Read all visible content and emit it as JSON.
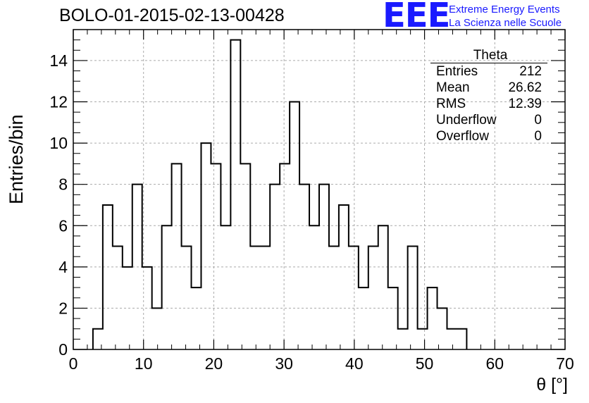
{
  "chart_data": {
    "type": "histogram",
    "title": "BOLO-01-2015-02-13-00428",
    "xlabel": "θ [°]",
    "ylabel": "Entries/bin",
    "xlim": [
      0,
      70
    ],
    "ylim": [
      0,
      15.5
    ],
    "xticks": [
      "0",
      "10",
      "20",
      "30",
      "40",
      "50",
      "60",
      "70"
    ],
    "yticks": [
      "0",
      "2",
      "4",
      "6",
      "8",
      "10",
      "12",
      "14"
    ],
    "grid": true,
    "bin_width": 1.4,
    "bin_edges_start": 2.8,
    "values": [
      1,
      7,
      5,
      4,
      8,
      4,
      2,
      6,
      9,
      5,
      3,
      10,
      9,
      6,
      15,
      9,
      5,
      5,
      8,
      9,
      12,
      8,
      6,
      8,
      5,
      7,
      5,
      3,
      5,
      6,
      3,
      1,
      5,
      1,
      3,
      2,
      1,
      1
    ],
    "line_color": "#000000"
  },
  "stats_box": {
    "title": "Theta",
    "rows": [
      {
        "label": "Entries",
        "value": "212"
      },
      {
        "label": "Mean",
        "value": "26.62"
      },
      {
        "label": "RMS",
        "value": "12.39"
      },
      {
        "label": "Underflow",
        "value": "0"
      },
      {
        "label": "Overflow",
        "value": "0"
      }
    ]
  },
  "logo": {
    "mark": "EEE",
    "line1": "Extreme Energy Events",
    "line2": "La Scienza nelle Scuole",
    "color": "#1a1aff"
  }
}
